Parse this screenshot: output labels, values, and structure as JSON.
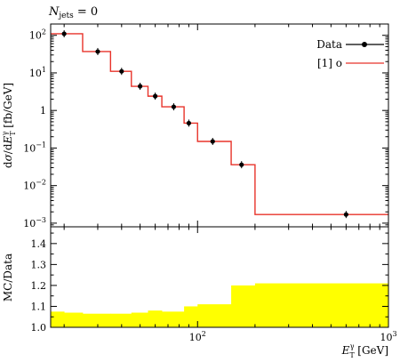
{
  "chart_data": {
    "type": "line",
    "title": "",
    "annotation": "N_jets = 0",
    "xscale": "log",
    "xlim": [
      17,
      1000
    ],
    "main": {
      "yscale": "log",
      "ylim": [
        0.0008,
        200
      ],
      "ylabel": "dσ/dE_T^γ [fb/GeV]",
      "y_ticks": [
        {
          "value": 100,
          "base": "10",
          "exp": "2"
        },
        {
          "value": 10,
          "base": "10",
          "exp": "1"
        },
        {
          "value": 1,
          "base": "1",
          "exp": ""
        },
        {
          "value": 0.1,
          "base": "10",
          "exp": "−1"
        },
        {
          "value": 0.01,
          "base": "10",
          "exp": "−2"
        },
        {
          "value": 0.001,
          "base": "10",
          "exp": "−3"
        }
      ],
      "data": {
        "name": "Data",
        "x": [
          20,
          30,
          40,
          50,
          60,
          75,
          90,
          120,
          170,
          600
        ],
        "y": [
          110,
          37,
          11,
          4.4,
          2.4,
          1.25,
          0.46,
          0.15,
          0.036,
          0.0017
        ]
      },
      "mc": {
        "name": "[1] o",
        "edges": [
          17,
          25,
          35,
          45,
          55,
          65,
          85,
          100,
          150,
          200,
          1000
        ],
        "values": [
          110,
          37,
          11,
          4.4,
          2.4,
          1.25,
          0.46,
          0.15,
          0.036,
          0.0017
        ]
      }
    },
    "ratio": {
      "ylim": [
        1.0,
        1.48
      ],
      "ylabel": "MC/Data",
      "y_ticks": [
        {
          "value": 1.0,
          "label": "1.0"
        },
        {
          "value": 1.1,
          "label": "1.1"
        },
        {
          "value": 1.2,
          "label": "1.2"
        },
        {
          "value": 1.3,
          "label": "1.3"
        },
        {
          "value": 1.4,
          "label": "1.4"
        }
      ],
      "band": {
        "edges": [
          17,
          20,
          25,
          35,
          45,
          55,
          65,
          85,
          100,
          150,
          200,
          1000
        ],
        "upper": [
          1.075,
          1.07,
          1.065,
          1.065,
          1.07,
          1.08,
          1.075,
          1.1,
          1.11,
          1.2,
          1.21
        ]
      }
    },
    "x_ticks": [
      {
        "value": 100,
        "base": "10",
        "exp": "2"
      },
      {
        "value": 1000,
        "base": "10",
        "exp": "3"
      }
    ],
    "xlabel": "E_T^γ [GeV]"
  },
  "colors": {
    "mc_line": "#e8332a",
    "band": "#ffff00",
    "data_marker": "#000000"
  }
}
